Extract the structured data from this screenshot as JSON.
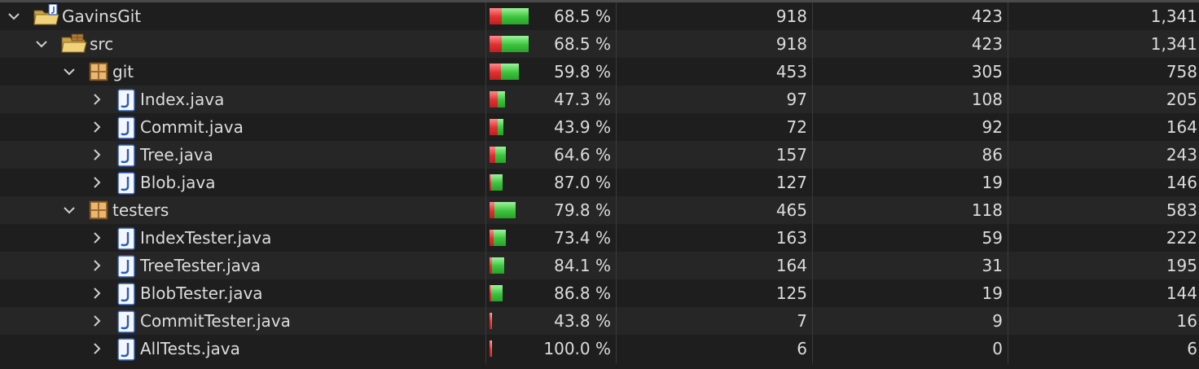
{
  "colors": {
    "missed": "#e03030",
    "covered": "#3cc43c",
    "background": "#1e1e1e",
    "row_alt": "#262626"
  },
  "rows": [
    {
      "name": "GavinsGit",
      "icon": "java-project-icon",
      "level": 0,
      "expanded": true,
      "coverage": "68.5 %",
      "covered_value": 0.685,
      "covered": "918",
      "missed": "423",
      "total": "1,341"
    },
    {
      "name": "src",
      "icon": "source-folder-icon",
      "level": 1,
      "expanded": true,
      "coverage": "68.5 %",
      "covered_value": 0.685,
      "covered": "918",
      "missed": "423",
      "total": "1,341"
    },
    {
      "name": "git",
      "icon": "package-icon",
      "level": 2,
      "expanded": true,
      "coverage": "59.8 %",
      "covered_value": 0.598,
      "covered": "453",
      "missed": "305",
      "total": "758"
    },
    {
      "name": "Index.java",
      "icon": "java-file-icon",
      "level": 3,
      "expanded": false,
      "coverage": "47.3 %",
      "covered_value": 0.473,
      "covered": "97",
      "missed": "108",
      "total": "205"
    },
    {
      "name": "Commit.java",
      "icon": "java-file-icon",
      "level": 3,
      "expanded": false,
      "coverage": "43.9 %",
      "covered_value": 0.439,
      "covered": "72",
      "missed": "92",
      "total": "164"
    },
    {
      "name": "Tree.java",
      "icon": "java-file-icon",
      "level": 3,
      "expanded": false,
      "coverage": "64.6 %",
      "covered_value": 0.646,
      "covered": "157",
      "missed": "86",
      "total": "243"
    },
    {
      "name": "Blob.java",
      "icon": "java-file-icon",
      "level": 3,
      "expanded": false,
      "coverage": "87.0 %",
      "covered_value": 0.87,
      "covered": "127",
      "missed": "19",
      "total": "146"
    },
    {
      "name": "testers",
      "icon": "package-icon",
      "level": 2,
      "expanded": true,
      "coverage": "79.8 %",
      "covered_value": 0.798,
      "covered": "465",
      "missed": "118",
      "total": "583"
    },
    {
      "name": "IndexTester.java",
      "icon": "java-file-icon",
      "level": 3,
      "expanded": false,
      "coverage": "73.4 %",
      "covered_value": 0.734,
      "covered": "163",
      "missed": "59",
      "total": "222"
    },
    {
      "name": "TreeTester.java",
      "icon": "java-file-icon",
      "level": 3,
      "expanded": false,
      "coverage": "84.1 %",
      "covered_value": 0.841,
      "covered": "164",
      "missed": "31",
      "total": "195"
    },
    {
      "name": "BlobTester.java",
      "icon": "java-file-icon",
      "level": 3,
      "expanded": false,
      "coverage": "86.8 %",
      "covered_value": 0.868,
      "covered": "125",
      "missed": "19",
      "total": "144"
    },
    {
      "name": "CommitTester.java",
      "icon": "java-file-icon",
      "level": 3,
      "expanded": false,
      "coverage": "43.8 %",
      "covered_value": 0.438,
      "covered": "7",
      "missed": "9",
      "total": "16"
    },
    {
      "name": "AllTests.java",
      "icon": "java-file-icon",
      "level": 3,
      "expanded": false,
      "coverage": "100.0 %",
      "covered_value": 1.0,
      "covered": "6",
      "missed": "0",
      "total": "6"
    }
  ]
}
